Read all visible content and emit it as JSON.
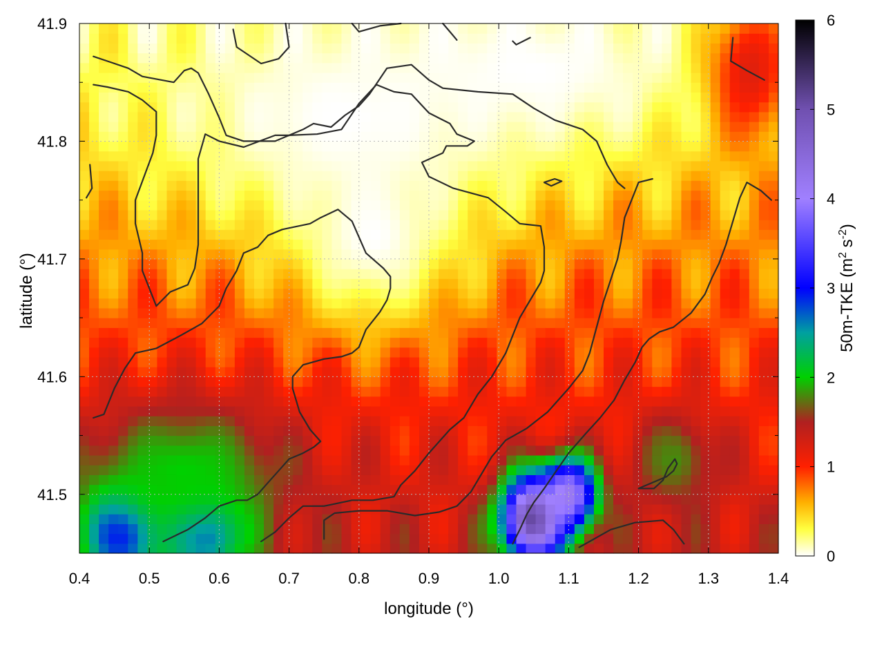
{
  "chart_data": {
    "type": "heatmap",
    "xlabel": "longitude (°)",
    "ylabel": "latitude (°)",
    "xlim": [
      0.4,
      1.4
    ],
    "ylim": [
      41.45,
      41.9
    ],
    "x_ticks": [
      {
        "value": 0.4,
        "label": "0.4"
      },
      {
        "value": 0.5,
        "label": "0.5"
      },
      {
        "value": 0.6,
        "label": "0.6"
      },
      {
        "value": 0.7,
        "label": "0.7"
      },
      {
        "value": 0.8,
        "label": "0.8"
      },
      {
        "value": 0.9,
        "label": "0.9"
      },
      {
        "value": 1.0,
        "label": "1.0"
      },
      {
        "value": 1.1,
        "label": "1.1"
      },
      {
        "value": 1.2,
        "label": "1.2"
      },
      {
        "value": 1.3,
        "label": "1.3"
      },
      {
        "value": 1.4,
        "label": "1.4"
      }
    ],
    "y_ticks": [
      {
        "value": 41.5,
        "label": "41.5"
      },
      {
        "value": 41.6,
        "label": "41.6"
      },
      {
        "value": 41.7,
        "label": "41.7"
      },
      {
        "value": 41.8,
        "label": "41.8"
      },
      {
        "value": 41.9,
        "label": "41.9"
      }
    ],
    "y_minor_ticks": [
      41.55,
      41.65,
      41.75,
      41.85
    ],
    "grid": true,
    "colorbar": {
      "label_main": "50m-TKE (m",
      "label_sup1": "2",
      "label_mid": " s",
      "label_sup2": "-2",
      "label_end": ")",
      "range": [
        0,
        6
      ],
      "ticks": [
        {
          "value": 0,
          "label": "0"
        },
        {
          "value": 1,
          "label": "1"
        },
        {
          "value": 2,
          "label": "2"
        },
        {
          "value": 3,
          "label": "3"
        },
        {
          "value": 4,
          "label": "4"
        },
        {
          "value": 5,
          "label": "5"
        },
        {
          "value": 6,
          "label": "6"
        }
      ],
      "colormap": [
        {
          "v": 0.0,
          "color": "#ffffff"
        },
        {
          "v": 0.3,
          "color": "#ffff40"
        },
        {
          "v": 0.6,
          "color": "#ffb000"
        },
        {
          "v": 1.0,
          "color": "#ff2000"
        },
        {
          "v": 1.5,
          "color": "#b02020"
        },
        {
          "v": 2.0,
          "color": "#00d000"
        },
        {
          "v": 2.5,
          "color": "#00a0a0"
        },
        {
          "v": 3.0,
          "color": "#0000ff"
        },
        {
          "v": 4.0,
          "color": "#a080ff"
        },
        {
          "v": 5.0,
          "color": "#7050b0"
        },
        {
          "v": 6.0,
          "color": "#000000"
        }
      ]
    },
    "field_features": [
      {
        "name": "low-tke-region-north",
        "lon": 0.78,
        "lat": 41.82,
        "rlon": 0.3,
        "rlat": 0.1,
        "value": 0.0
      },
      {
        "name": "low-tke-lobe-south",
        "lon": 0.82,
        "lat": 41.72,
        "rlon": 0.12,
        "rlat": 0.08,
        "value": 0.0
      },
      {
        "name": "low-tke-band-northeast",
        "lon": 1.05,
        "lat": 41.86,
        "rlon": 0.25,
        "rlat": 0.07,
        "value": 0.0
      },
      {
        "name": "tke-max-southeast-1",
        "lon": 1.05,
        "lat": 41.48,
        "rlon": 0.045,
        "rlat": 0.035,
        "value": 5.2
      },
      {
        "name": "tke-max-southeast-2",
        "lon": 1.1,
        "lat": 41.5,
        "rlon": 0.04,
        "rlat": 0.03,
        "value": 4.2
      },
      {
        "name": "tke-high-southwest",
        "lon": 0.46,
        "lat": 41.47,
        "rlon": 0.06,
        "rlat": 0.04,
        "value": 3.3
      },
      {
        "name": "tke-high-south",
        "lon": 0.58,
        "lat": 41.47,
        "rlon": 0.06,
        "rlat": 0.04,
        "value": 3.0
      },
      {
        "name": "tke-medium-southwest-band",
        "lon": 0.55,
        "lat": 41.52,
        "rlon": 0.15,
        "rlat": 0.06,
        "value": 2.0
      },
      {
        "name": "tke-medium-east",
        "lon": 1.25,
        "lat": 41.53,
        "rlon": 0.06,
        "rlat": 0.04,
        "value": 1.8
      },
      {
        "name": "tke-high-northeast-corner",
        "lon": 1.36,
        "lat": 41.86,
        "rlon": 0.06,
        "rlat": 0.06,
        "value": 1.2
      }
    ],
    "contours": [
      [
        [
          0.42,
          41.872
        ],
        [
          0.44,
          41.868
        ],
        [
          0.47,
          41.862
        ],
        [
          0.49,
          41.855
        ],
        [
          0.535,
          41.85
        ],
        [
          0.55,
          41.86
        ],
        [
          0.56,
          41.862
        ],
        [
          0.57,
          41.858
        ],
        [
          0.585,
          41.84
        ],
        [
          0.6,
          41.82
        ],
        [
          0.61,
          41.805
        ],
        [
          0.635,
          41.8
        ],
        [
          0.68,
          41.8
        ],
        [
          0.72,
          41.81
        ],
        [
          0.735,
          41.815
        ],
        [
          0.76,
          41.812
        ],
        [
          0.78,
          41.822
        ],
        [
          0.8,
          41.83
        ],
        [
          0.815,
          41.84
        ],
        [
          0.84,
          41.862
        ],
        [
          0.875,
          41.865
        ],
        [
          0.9,
          41.852
        ],
        [
          0.92,
          41.845
        ],
        [
          0.97,
          41.842
        ],
        [
          1.02,
          41.84
        ],
        [
          1.05,
          41.828
        ],
        [
          1.08,
          41.818
        ],
        [
          1.12,
          41.81
        ],
        [
          1.14,
          41.8
        ],
        [
          1.155,
          41.78
        ],
        [
          1.17,
          41.765
        ],
        [
          1.18,
          41.76
        ]
      ],
      [
        [
          0.42,
          41.848
        ],
        [
          0.44,
          41.846
        ],
        [
          0.47,
          41.842
        ],
        [
          0.49,
          41.835
        ],
        [
          0.51,
          41.825
        ],
        [
          0.51,
          41.805
        ],
        [
          0.505,
          41.79
        ],
        [
          0.48,
          41.75
        ],
        [
          0.48,
          41.73
        ],
        [
          0.49,
          41.705
        ],
        [
          0.49,
          41.69
        ],
        [
          0.5,
          41.675
        ],
        [
          0.51,
          41.66
        ],
        [
          0.53,
          41.672
        ],
        [
          0.555,
          41.678
        ],
        [
          0.565,
          41.692
        ],
        [
          0.57,
          41.712
        ],
        [
          0.57,
          41.75
        ],
        [
          0.57,
          41.785
        ],
        [
          0.58,
          41.806
        ],
        [
          0.6,
          41.8
        ],
        [
          0.635,
          41.795
        ],
        [
          0.68,
          41.805
        ],
        [
          0.7,
          41.805
        ],
        [
          0.74,
          41.806
        ],
        [
          0.775,
          41.81
        ],
        [
          0.8,
          41.832
        ],
        [
          0.825,
          41.848
        ],
        [
          0.85,
          41.842
        ],
        [
          0.875,
          41.84
        ],
        [
          0.9,
          41.824
        ],
        [
          0.93,
          41.815
        ],
        [
          0.94,
          41.806
        ],
        [
          0.965,
          41.8
        ],
        [
          0.955,
          41.796
        ],
        [
          0.925,
          41.796
        ],
        [
          0.92,
          41.79
        ],
        [
          0.89,
          41.782
        ],
        [
          0.9,
          41.77
        ],
        [
          0.935,
          41.76
        ],
        [
          0.985,
          41.752
        ],
        [
          1.01,
          41.74
        ],
        [
          1.03,
          41.73
        ],
        [
          1.06,
          41.728
        ],
        [
          1.065,
          41.71
        ],
        [
          1.065,
          41.69
        ],
        [
          1.06,
          41.68
        ],
        [
          1.045,
          41.665
        ],
        [
          1.03,
          41.65
        ],
        [
          1.02,
          41.635
        ],
        [
          1.01,
          41.62
        ],
        [
          1.0,
          41.61
        ],
        [
          0.99,
          41.6
        ],
        [
          0.97,
          41.585
        ],
        [
          0.95,
          41.565
        ],
        [
          0.93,
          41.555
        ],
        [
          0.9,
          41.535
        ],
        [
          0.88,
          41.52
        ],
        [
          0.86,
          41.508
        ],
        [
          0.85,
          41.498
        ],
        [
          0.82,
          41.495
        ],
        [
          0.79,
          41.495
        ],
        [
          0.75,
          41.49
        ],
        [
          0.72,
          41.49
        ],
        [
          0.7,
          41.48
        ],
        [
          0.68,
          41.468
        ],
        [
          0.66,
          41.46
        ]
      ],
      [
        [
          0.42,
          41.565
        ],
        [
          0.435,
          41.568
        ],
        [
          0.45,
          41.59
        ],
        [
          0.465,
          41.607
        ],
        [
          0.48,
          41.62
        ],
        [
          0.51,
          41.624
        ],
        [
          0.545,
          41.635
        ],
        [
          0.575,
          41.645
        ],
        [
          0.6,
          41.66
        ],
        [
          0.61,
          41.675
        ],
        [
          0.625,
          41.69
        ],
        [
          0.635,
          41.705
        ],
        [
          0.655,
          41.71
        ],
        [
          0.67,
          41.72
        ],
        [
          0.69,
          41.725
        ],
        [
          0.73,
          41.73
        ],
        [
          0.745,
          41.735
        ],
        [
          0.77,
          41.742
        ],
        [
          0.79,
          41.732
        ],
        [
          0.81,
          41.705
        ],
        [
          0.835,
          41.692
        ],
        [
          0.845,
          41.685
        ],
        [
          0.845,
          41.675
        ],
        [
          0.84,
          41.665
        ],
        [
          0.83,
          41.655
        ],
        [
          0.81,
          41.64
        ],
        [
          0.8,
          41.625
        ],
        [
          0.79,
          41.62
        ],
        [
          0.775,
          41.617
        ],
        [
          0.75,
          41.615
        ],
        [
          0.72,
          41.61
        ],
        [
          0.705,
          41.6
        ],
        [
          0.705,
          41.59
        ],
        [
          0.715,
          41.57
        ],
        [
          0.73,
          41.555
        ],
        [
          0.745,
          41.545
        ],
        [
          0.735,
          41.54
        ],
        [
          0.72,
          41.535
        ],
        [
          0.7,
          41.53
        ],
        [
          0.685,
          41.52
        ],
        [
          0.67,
          41.51
        ],
        [
          0.655,
          41.5
        ],
        [
          0.64,
          41.495
        ],
        [
          0.625,
          41.495
        ],
        [
          0.6,
          41.49
        ],
        [
          0.58,
          41.48
        ],
        [
          0.555,
          41.47
        ],
        [
          0.52,
          41.46
        ]
      ],
      [
        [
          0.75,
          41.462
        ],
        [
          0.75,
          41.478
        ],
        [
          0.765,
          41.484
        ],
        [
          0.8,
          41.486
        ],
        [
          0.84,
          41.486
        ],
        [
          0.88,
          41.482
        ],
        [
          0.915,
          41.485
        ],
        [
          0.94,
          41.49
        ],
        [
          0.96,
          41.502
        ],
        [
          0.975,
          41.517
        ],
        [
          0.99,
          41.532
        ],
        [
          1.01,
          41.546
        ],
        [
          1.04,
          41.556
        ],
        [
          1.07,
          41.57
        ],
        [
          1.1,
          41.59
        ],
        [
          1.12,
          41.605
        ],
        [
          1.13,
          41.62
        ],
        [
          1.14,
          41.642
        ],
        [
          1.15,
          41.664
        ],
        [
          1.16,
          41.682
        ],
        [
          1.17,
          41.7
        ],
        [
          1.175,
          41.715
        ],
        [
          1.18,
          41.735
        ],
        [
          1.19,
          41.75
        ],
        [
          1.2,
          41.765
        ],
        [
          1.22,
          41.768
        ]
      ],
      [
        [
          1.02,
          41.458
        ],
        [
          1.03,
          41.47
        ],
        [
          1.04,
          41.483
        ],
        [
          1.05,
          41.493
        ],
        [
          1.065,
          41.505
        ],
        [
          1.08,
          41.518
        ],
        [
          1.1,
          41.535
        ],
        [
          1.125,
          41.552
        ],
        [
          1.145,
          41.565
        ],
        [
          1.165,
          41.58
        ],
        [
          1.18,
          41.597
        ],
        [
          1.195,
          41.612
        ],
        [
          1.205,
          41.625
        ],
        [
          1.215,
          41.632
        ],
        [
          1.23,
          41.638
        ],
        [
          1.25,
          41.642
        ],
        [
          1.275,
          41.654
        ],
        [
          1.295,
          41.67
        ],
        [
          1.305,
          41.684
        ],
        [
          1.315,
          41.696
        ],
        [
          1.325,
          41.712
        ],
        [
          1.335,
          41.732
        ],
        [
          1.345,
          41.752
        ],
        [
          1.355,
          41.765
        ],
        [
          1.375,
          41.758
        ],
        [
          1.39,
          41.75
        ]
      ],
      [
        [
          1.115,
          41.455
        ],
        [
          1.13,
          41.46
        ],
        [
          1.16,
          41.47
        ],
        [
          1.195,
          41.476
        ],
        [
          1.235,
          41.478
        ],
        [
          1.25,
          41.47
        ],
        [
          1.265,
          41.458
        ]
      ],
      [
        [
          1.2,
          41.505
        ],
        [
          1.22,
          41.51
        ],
        [
          1.24,
          41.515
        ],
        [
          1.25,
          41.52
        ],
        [
          1.255,
          41.526
        ],
        [
          1.252,
          41.53
        ],
        [
          1.242,
          41.522
        ],
        [
          1.235,
          41.512
        ],
        [
          1.222,
          41.505
        ],
        [
          1.2,
          41.505
        ]
      ],
      [
        [
          1.335,
          41.888
        ],
        [
          1.332,
          41.868
        ],
        [
          1.355,
          41.86
        ],
        [
          1.38,
          41.852
        ]
      ],
      [
        [
          0.62,
          41.895
        ],
        [
          0.625,
          41.88
        ],
        [
          0.66,
          41.866
        ],
        [
          0.685,
          41.87
        ],
        [
          0.7,
          41.88
        ],
        [
          0.695,
          41.9
        ]
      ],
      [
        [
          0.79,
          41.9
        ],
        [
          0.8,
          41.893
        ],
        [
          0.83,
          41.898
        ],
        [
          0.86,
          41.9
        ]
      ],
      [
        [
          0.92,
          41.9
        ],
        [
          0.93,
          41.893
        ],
        [
          0.94,
          41.886
        ]
      ],
      [
        [
          1.02,
          41.885
        ],
        [
          1.025,
          41.882
        ],
        [
          1.045,
          41.888
        ]
      ],
      [
        [
          1.065,
          41.765
        ],
        [
          1.08,
          41.768
        ],
        [
          1.09,
          41.766
        ],
        [
          1.075,
          41.762
        ],
        [
          1.065,
          41.765
        ]
      ],
      [
        [
          0.415,
          41.78
        ],
        [
          0.418,
          41.76
        ],
        [
          0.41,
          41.752
        ]
      ]
    ]
  }
}
